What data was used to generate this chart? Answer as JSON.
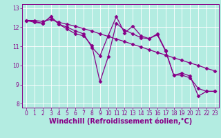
{
  "xlabel": "Windchill (Refroidissement éolien,°C)",
  "background_color": "#b3ece1",
  "line_color": "#880088",
  "grid_color": "#ffffff",
  "xlim": [
    -0.5,
    23.5
  ],
  "ylim": [
    7.8,
    13.2
  ],
  "yticks": [
    8,
    9,
    10,
    11,
    12,
    13
  ],
  "xticks": [
    0,
    1,
    2,
    3,
    4,
    5,
    6,
    7,
    8,
    9,
    10,
    11,
    12,
    13,
    14,
    15,
    16,
    17,
    18,
    19,
    20,
    21,
    22,
    23
  ],
  "line1_x": [
    0,
    1,
    2,
    3,
    4,
    5,
    6,
    7,
    8,
    9,
    10,
    11,
    12,
    13,
    14,
    15,
    16,
    17,
    18,
    19,
    20,
    21,
    22,
    23
  ],
  "line1_y": [
    12.35,
    12.35,
    12.3,
    12.4,
    12.25,
    12.15,
    12.05,
    11.92,
    11.8,
    11.65,
    11.52,
    11.38,
    11.25,
    11.1,
    10.97,
    10.82,
    10.68,
    10.55,
    10.4,
    10.27,
    10.13,
    10.0,
    9.85,
    9.72
  ],
  "line2_x": [
    0,
    1,
    2,
    3,
    4,
    5,
    6,
    7,
    8,
    9,
    10,
    11,
    12,
    13,
    14,
    15,
    16,
    17,
    18,
    19,
    20,
    21,
    22,
    23
  ],
  "line2_y": [
    12.35,
    12.3,
    12.2,
    12.55,
    12.15,
    11.9,
    11.65,
    11.55,
    11.05,
    9.15,
    10.45,
    12.2,
    11.85,
    11.65,
    11.45,
    11.4,
    11.6,
    10.75,
    9.5,
    9.6,
    9.45,
    8.4,
    8.65,
    8.65
  ],
  "line3_x": [
    0,
    1,
    2,
    3,
    4,
    5,
    6,
    7,
    8,
    9,
    10,
    11,
    12,
    13,
    14,
    15,
    16,
    17,
    18,
    19,
    20,
    21,
    22,
    23
  ],
  "line3_y": [
    12.35,
    12.25,
    12.2,
    12.55,
    12.15,
    12.0,
    11.8,
    11.65,
    10.95,
    10.5,
    11.55,
    12.55,
    11.7,
    12.05,
    11.55,
    11.4,
    11.65,
    10.8,
    9.5,
    9.5,
    9.35,
    8.8,
    8.65,
    8.65
  ],
  "marker": "D",
  "markersize": 2.5,
  "linewidth": 0.9,
  "tick_fontsize": 5.5,
  "xlabel_fontsize": 7.0
}
